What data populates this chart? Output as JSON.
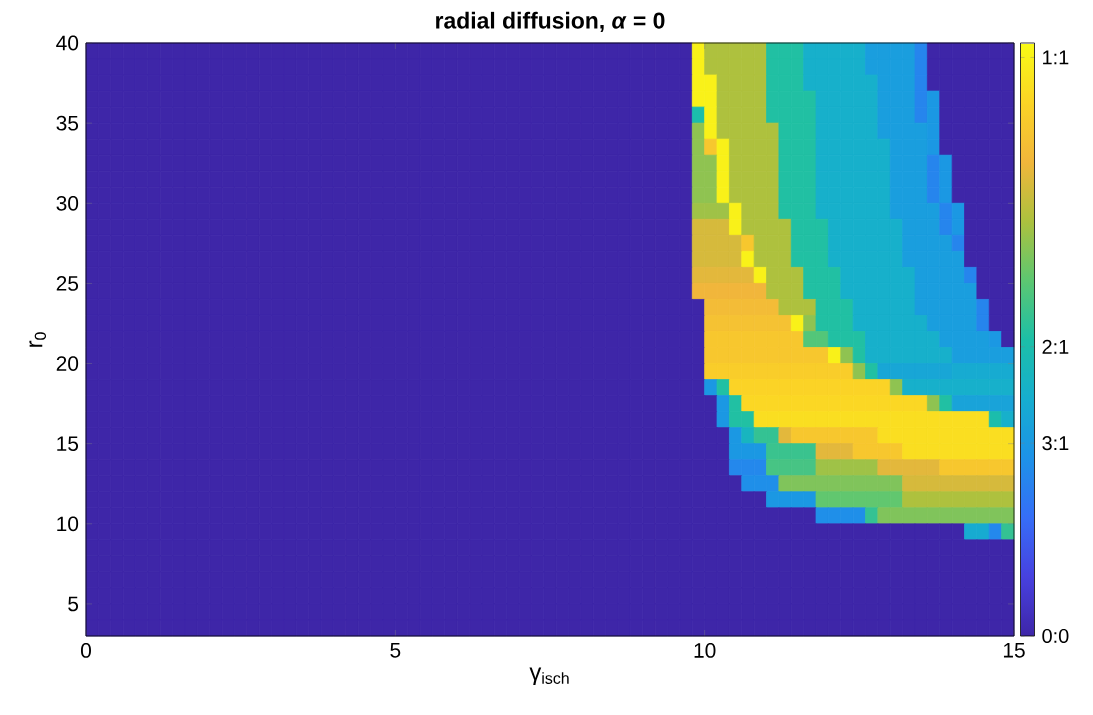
{
  "chart_data": {
    "type": "heatmap",
    "title": "radial diffusion, *α* = 0",
    "xlabel": "γ$_{isch}$",
    "ylabel": "r$_{0}$",
    "xlim": [
      0,
      15
    ],
    "ylim": [
      3,
      40
    ],
    "xticks": [
      0,
      5,
      10,
      15
    ],
    "yticks": [
      5,
      10,
      15,
      20,
      25,
      30,
      35,
      40
    ],
    "clim": [
      0,
      1.025
    ],
    "cticks": [
      {
        "value": 0,
        "label": "0:0"
      },
      {
        "value": 0.3333,
        "label": "3:1"
      },
      {
        "value": 0.5,
        "label": "2:1"
      },
      {
        "value": 1,
        "label": "1:1"
      }
    ],
    "x": [
      0.1,
      0.3,
      0.5,
      0.7,
      0.9,
      1.1,
      1.3,
      1.5,
      1.7,
      1.9,
      2.1,
      2.3,
      2.5,
      2.7,
      2.9,
      3.1,
      3.3,
      3.5,
      3.7,
      3.9,
      4.1,
      4.3,
      4.5,
      4.7,
      4.9,
      5.1,
      5.3,
      5.5,
      5.7,
      5.9,
      6.1,
      6.3,
      6.5,
      6.7,
      6.9,
      7.1,
      7.3,
      7.5,
      7.7,
      7.9,
      8.1,
      8.3,
      8.5,
      8.7,
      8.9,
      9.1,
      9.3,
      9.5,
      9.7,
      9.9,
      10.1,
      10.3,
      10.5,
      10.7,
      10.9,
      11.1,
      11.3,
      11.5,
      11.7,
      11.9,
      12.1,
      12.3,
      12.5,
      12.7,
      12.9,
      13.1,
      13.3,
      13.5,
      13.7,
      13.9,
      14.1,
      14.3,
      14.5,
      14.7,
      14.9
    ],
    "y": [
      39.5,
      38.5,
      37.5,
      36.5,
      35.5,
      34.5,
      33.5,
      32.5,
      31.5,
      30.5,
      29.5,
      28.5,
      27.5,
      26.5,
      25.5,
      24.5,
      23.5,
      22.5,
      21.5,
      20.5,
      19.5,
      18.5,
      17.5,
      16.5,
      15.5,
      14.5,
      13.5,
      12.5,
      11.5,
      10.5,
      9.5,
      8.5,
      7.5,
      6.5,
      5.5,
      4.5,
      3.5
    ],
    "cells": [
      [
        0,
        0,
        0,
        0,
        0,
        0,
        0,
        0,
        0,
        0,
        0,
        0,
        0,
        0,
        0,
        0,
        0,
        0,
        0,
        0,
        0,
        0,
        0,
        0,
        0,
        0,
        0,
        0,
        0,
        0,
        0,
        0,
        0,
        0,
        0,
        0,
        0,
        0,
        0,
        0,
        0,
        0,
        0,
        0,
        0,
        0,
        0,
        0,
        0,
        1,
        0.72,
        0.72,
        0.72,
        0.72,
        0.72,
        0.52,
        0.52,
        0.52,
        0.42,
        0.42,
        0.42,
        0.42,
        0.42,
        0.35,
        0.35,
        0.35,
        0.35,
        0.27,
        0,
        0,
        0,
        0,
        0,
        0,
        0
      ],
      [
        0,
        0,
        0,
        0,
        0,
        0,
        0,
        0,
        0,
        0,
        0,
        0,
        0,
        0,
        0,
        0,
        0,
        0,
        0,
        0,
        0,
        0,
        0,
        0,
        0,
        0,
        0,
        0,
        0,
        0,
        0,
        0,
        0,
        0,
        0,
        0,
        0,
        0,
        0,
        0,
        0,
        0,
        0,
        0,
        0,
        0,
        0,
        0,
        0,
        1,
        0.72,
        0.72,
        0.72,
        0.72,
        0.72,
        0.52,
        0.52,
        0.52,
        0.42,
        0.42,
        0.42,
        0.42,
        0.42,
        0.35,
        0.35,
        0.35,
        0.35,
        0.27,
        0,
        0,
        0,
        0,
        0,
        0,
        0
      ],
      [
        0,
        0,
        0,
        0,
        0,
        0,
        0,
        0,
        0,
        0,
        0,
        0,
        0,
        0,
        0,
        0,
        0,
        0,
        0,
        0,
        0,
        0,
        0,
        0,
        0,
        0,
        0,
        0,
        0,
        0,
        0,
        0,
        0,
        0,
        0,
        0,
        0,
        0,
        0,
        0,
        0,
        0,
        0,
        0,
        0,
        0,
        0,
        0,
        0,
        1,
        1,
        0.72,
        0.72,
        0.72,
        0.72,
        0.52,
        0.52,
        0.52,
        0.42,
        0.42,
        0.42,
        0.42,
        0.42,
        0.42,
        0.35,
        0.35,
        0.35,
        0.27,
        0,
        0,
        0,
        0,
        0,
        0,
        0
      ],
      [
        0,
        0,
        0,
        0,
        0,
        0,
        0,
        0,
        0,
        0,
        0,
        0,
        0,
        0,
        0,
        0,
        0,
        0,
        0,
        0,
        0,
        0,
        0,
        0,
        0,
        0,
        0,
        0,
        0,
        0,
        0,
        0,
        0,
        0,
        0,
        0,
        0,
        0,
        0,
        0,
        0,
        0,
        0,
        0,
        0,
        0,
        0,
        0,
        0,
        1,
        1,
        0.72,
        0.72,
        0.72,
        0.72,
        0.52,
        0.52,
        0.52,
        0.52,
        0.42,
        0.42,
        0.42,
        0.42,
        0.42,
        0.35,
        0.35,
        0.35,
        0.27,
        0.33,
        0,
        0,
        0,
        0,
        0,
        0
      ],
      [
        0,
        0,
        0,
        0,
        0,
        0,
        0,
        0,
        0,
        0,
        0,
        0,
        0,
        0,
        0,
        0,
        0,
        0,
        0,
        0,
        0,
        0,
        0,
        0,
        0,
        0,
        0,
        0,
        0,
        0,
        0,
        0,
        0,
        0,
        0,
        0,
        0,
        0,
        0,
        0,
        0,
        0,
        0,
        0,
        0,
        0,
        0,
        0,
        0,
        0.5,
        1,
        0.72,
        0.72,
        0.72,
        0.72,
        0.52,
        0.52,
        0.52,
        0.52,
        0.42,
        0.42,
        0.42,
        0.42,
        0.42,
        0.35,
        0.35,
        0.35,
        0.27,
        0.33,
        0,
        0,
        0,
        0,
        0,
        0
      ],
      [
        0,
        0,
        0,
        0,
        0,
        0,
        0,
        0,
        0,
        0,
        0,
        0,
        0,
        0,
        0,
        0,
        0,
        0,
        0,
        0,
        0,
        0,
        0,
        0,
        0,
        0,
        0,
        0,
        0,
        0,
        0,
        0,
        0,
        0,
        0,
        0,
        0,
        0,
        0,
        0,
        0,
        0,
        0,
        0,
        0,
        0,
        0,
        0,
        0,
        0.68,
        1,
        0.72,
        0.72,
        0.72,
        0.72,
        0.72,
        0.52,
        0.52,
        0.52,
        0.42,
        0.42,
        0.42,
        0.42,
        0.42,
        0.35,
        0.35,
        0.35,
        0.35,
        0.33,
        0,
        0,
        0,
        0,
        0,
        0
      ],
      [
        0,
        0,
        0,
        0,
        0,
        0,
        0,
        0,
        0,
        0,
        0,
        0,
        0,
        0,
        0,
        0,
        0,
        0,
        0,
        0,
        0,
        0,
        0,
        0,
        0,
        0,
        0,
        0,
        0,
        0,
        0,
        0,
        0,
        0,
        0,
        0,
        0,
        0,
        0,
        0,
        0,
        0,
        0,
        0,
        0,
        0,
        0,
        0,
        0,
        0.68,
        0.88,
        1,
        0.72,
        0.72,
        0.72,
        0.72,
        0.52,
        0.52,
        0.52,
        0.42,
        0.42,
        0.42,
        0.42,
        0.42,
        0.42,
        0.35,
        0.35,
        0.35,
        0.33,
        0,
        0,
        0,
        0,
        0,
        0
      ],
      [
        0,
        0,
        0,
        0,
        0,
        0,
        0,
        0,
        0,
        0,
        0,
        0,
        0,
        0,
        0,
        0,
        0,
        0,
        0,
        0,
        0,
        0,
        0,
        0,
        0,
        0,
        0,
        0,
        0,
        0,
        0,
        0,
        0,
        0,
        0,
        0,
        0,
        0,
        0,
        0,
        0,
        0,
        0,
        0,
        0,
        0,
        0,
        0,
        0,
        0.68,
        0.68,
        1,
        0.72,
        0.72,
        0.72,
        0.72,
        0.52,
        0.52,
        0.52,
        0.42,
        0.42,
        0.42,
        0.42,
        0.42,
        0.42,
        0.35,
        0.35,
        0.35,
        0.27,
        0.33,
        0,
        0,
        0,
        0,
        0
      ],
      [
        0,
        0,
        0,
        0,
        0,
        0,
        0,
        0,
        0,
        0,
        0,
        0,
        0,
        0,
        0,
        0,
        0,
        0,
        0,
        0,
        0,
        0,
        0,
        0,
        0,
        0,
        0,
        0,
        0,
        0,
        0,
        0,
        0,
        0,
        0,
        0,
        0,
        0,
        0,
        0,
        0,
        0,
        0,
        0,
        0,
        0,
        0,
        0,
        0,
        0.68,
        0.68,
        1,
        0.72,
        0.72,
        0.72,
        0.72,
        0.52,
        0.52,
        0.52,
        0.42,
        0.42,
        0.42,
        0.42,
        0.42,
        0.42,
        0.35,
        0.35,
        0.35,
        0.27,
        0.33,
        0,
        0,
        0,
        0,
        0
      ],
      [
        0,
        0,
        0,
        0,
        0,
        0,
        0,
        0,
        0,
        0,
        0,
        0,
        0,
        0,
        0,
        0,
        0,
        0,
        0,
        0,
        0,
        0,
        0,
        0,
        0,
        0,
        0,
        0,
        0,
        0,
        0,
        0,
        0,
        0,
        0,
        0,
        0,
        0,
        0,
        0,
        0,
        0,
        0,
        0,
        0,
        0,
        0,
        0,
        0,
        0.68,
        0.68,
        1,
        0.72,
        0.72,
        0.72,
        0.72,
        0.52,
        0.52,
        0.52,
        0.42,
        0.42,
        0.42,
        0.42,
        0.42,
        0.42,
        0.35,
        0.35,
        0.35,
        0.27,
        0.33,
        0,
        0,
        0,
        0,
        0
      ],
      [
        0,
        0,
        0,
        0,
        0,
        0,
        0,
        0,
        0,
        0,
        0,
        0,
        0,
        0,
        0,
        0,
        0,
        0,
        0,
        0,
        0,
        0,
        0,
        0,
        0,
        0,
        0,
        0,
        0,
        0,
        0,
        0,
        0,
        0,
        0,
        0,
        0,
        0,
        0,
        0,
        0,
        0,
        0,
        0,
        0,
        0,
        0,
        0,
        0,
        0.7,
        0.7,
        0.7,
        1,
        0.72,
        0.72,
        0.72,
        0.52,
        0.52,
        0.52,
        0.42,
        0.42,
        0.42,
        0.42,
        0.42,
        0.42,
        0.35,
        0.35,
        0.35,
        0.35,
        0.27,
        0.33,
        0,
        0,
        0,
        0
      ],
      [
        0,
        0,
        0,
        0,
        0,
        0,
        0,
        0,
        0,
        0,
        0,
        0,
        0,
        0,
        0,
        0,
        0,
        0,
        0,
        0,
        0,
        0,
        0,
        0,
        0,
        0,
        0,
        0,
        0,
        0,
        0,
        0,
        0,
        0,
        0,
        0,
        0,
        0,
        0,
        0,
        0,
        0,
        0,
        0,
        0,
        0,
        0,
        0,
        0,
        0.78,
        0.78,
        0.78,
        1,
        0.72,
        0.72,
        0.72,
        0.72,
        0.52,
        0.52,
        0.52,
        0.42,
        0.42,
        0.42,
        0.42,
        0.42,
        0.42,
        0.35,
        0.35,
        0.35,
        0.27,
        0.33,
        0,
        0,
        0,
        0
      ],
      [
        0,
        0,
        0,
        0,
        0,
        0,
        0,
        0,
        0,
        0,
        0,
        0,
        0,
        0,
        0,
        0,
        0,
        0,
        0,
        0,
        0,
        0,
        0,
        0,
        0,
        0,
        0,
        0,
        0,
        0,
        0,
        0,
        0,
        0,
        0,
        0,
        0,
        0,
        0,
        0,
        0,
        0,
        0,
        0,
        0,
        0,
        0,
        0,
        0,
        0.78,
        0.78,
        0.78,
        0.78,
        0.88,
        0.72,
        0.72,
        0.72,
        0.52,
        0.52,
        0.52,
        0.42,
        0.42,
        0.42,
        0.42,
        0.42,
        0.42,
        0.35,
        0.35,
        0.35,
        0.35,
        0.27,
        0,
        0,
        0,
        0
      ],
      [
        0,
        0,
        0,
        0,
        0,
        0,
        0,
        0,
        0,
        0,
        0,
        0,
        0,
        0,
        0,
        0,
        0,
        0,
        0,
        0,
        0,
        0,
        0,
        0,
        0,
        0,
        0,
        0,
        0,
        0,
        0,
        0,
        0,
        0,
        0,
        0,
        0,
        0,
        0,
        0,
        0,
        0,
        0,
        0,
        0,
        0,
        0,
        0,
        0,
        0.78,
        0.78,
        0.78,
        0.78,
        1,
        0.72,
        0.72,
        0.72,
        0.52,
        0.52,
        0.52,
        0.42,
        0.42,
        0.42,
        0.42,
        0.42,
        0.42,
        0.35,
        0.35,
        0.35,
        0.35,
        0.35,
        0,
        0,
        0,
        0
      ],
      [
        0,
        0,
        0,
        0,
        0,
        0,
        0,
        0,
        0,
        0,
        0,
        0,
        0,
        0,
        0,
        0,
        0,
        0,
        0,
        0,
        0,
        0,
        0,
        0,
        0,
        0,
        0,
        0,
        0,
        0,
        0,
        0,
        0,
        0,
        0,
        0,
        0,
        0,
        0,
        0,
        0,
        0,
        0,
        0,
        0,
        0,
        0,
        0,
        0,
        0.8,
        0.8,
        0.8,
        0.8,
        0.8,
        1,
        0.72,
        0.72,
        0.72,
        0.52,
        0.52,
        0.52,
        0.42,
        0.42,
        0.42,
        0.42,
        0.42,
        0.42,
        0.35,
        0.35,
        0.35,
        0.35,
        0.27,
        0,
        0,
        0
      ],
      [
        0,
        0,
        0,
        0,
        0,
        0,
        0,
        0,
        0,
        0,
        0,
        0,
        0,
        0,
        0,
        0,
        0,
        0,
        0,
        0,
        0,
        0,
        0,
        0,
        0,
        0,
        0,
        0,
        0,
        0,
        0,
        0,
        0,
        0,
        0,
        0,
        0,
        0,
        0,
        0,
        0,
        0,
        0,
        0,
        0,
        0,
        0,
        0,
        0,
        0.82,
        0.82,
        0.82,
        0.82,
        0.82,
        0.82,
        0.72,
        0.72,
        0.72,
        0.52,
        0.52,
        0.52,
        0.42,
        0.42,
        0.42,
        0.42,
        0.42,
        0.42,
        0.35,
        0.35,
        0.35,
        0.35,
        0.35,
        0,
        0,
        0
      ],
      [
        0,
        0,
        0,
        0,
        0,
        0,
        0,
        0,
        0,
        0,
        0,
        0,
        0,
        0,
        0,
        0,
        0,
        0,
        0,
        0,
        0,
        0,
        0,
        0,
        0,
        0,
        0,
        0,
        0,
        0,
        0,
        0,
        0,
        0,
        0,
        0,
        0,
        0,
        0,
        0,
        0,
        0,
        0,
        0,
        0,
        0,
        0,
        0,
        0,
        0,
        0.84,
        0.84,
        0.84,
        0.84,
        0.84,
        0.84,
        0.72,
        0.72,
        0.72,
        0.52,
        0.52,
        0.52,
        0.42,
        0.42,
        0.42,
        0.42,
        0.42,
        0.35,
        0.35,
        0.35,
        0.35,
        0.35,
        0.27,
        0,
        0
      ],
      [
        0,
        0,
        0,
        0,
        0,
        0,
        0,
        0,
        0,
        0,
        0,
        0,
        0,
        0,
        0,
        0,
        0,
        0,
        0,
        0,
        0,
        0,
        0,
        0,
        0,
        0,
        0,
        0,
        0,
        0,
        0,
        0,
        0,
        0,
        0,
        0,
        0,
        0,
        0,
        0,
        0,
        0,
        0,
        0,
        0,
        0,
        0,
        0,
        0,
        0,
        0.86,
        0.86,
        0.86,
        0.86,
        0.86,
        0.86,
        0.86,
        1,
        0.68,
        0.52,
        0.52,
        0.52,
        0.42,
        0.42,
        0.42,
        0.42,
        0.42,
        0.42,
        0.35,
        0.35,
        0.35,
        0.35,
        0.27,
        0,
        0
      ],
      [
        0,
        0,
        0,
        0,
        0,
        0,
        0,
        0,
        0,
        0,
        0,
        0,
        0,
        0,
        0,
        0,
        0,
        0,
        0,
        0,
        0,
        0,
        0,
        0,
        0,
        0,
        0,
        0,
        0,
        0,
        0,
        0,
        0,
        0,
        0,
        0,
        0,
        0,
        0,
        0,
        0,
        0,
        0,
        0,
        0,
        0,
        0,
        0,
        0,
        0,
        0.88,
        0.88,
        0.88,
        0.88,
        0.88,
        0.88,
        0.88,
        0.88,
        0.6,
        0.6,
        0.52,
        0.52,
        0.52,
        0.42,
        0.42,
        0.42,
        0.42,
        0.42,
        0.42,
        0.35,
        0.35,
        0.35,
        0.35,
        0.33,
        0
      ],
      [
        0,
        0,
        0,
        0,
        0,
        0,
        0,
        0,
        0,
        0,
        0,
        0,
        0,
        0,
        0,
        0,
        0,
        0,
        0,
        0,
        0,
        0,
        0,
        0,
        0,
        0,
        0,
        0,
        0,
        0,
        0,
        0,
        0,
        0,
        0,
        0,
        0,
        0,
        0,
        0,
        0,
        0,
        0,
        0,
        0,
        0,
        0,
        0,
        0,
        0,
        0.88,
        0.88,
        0.88,
        0.88,
        0.88,
        0.88,
        0.88,
        0.88,
        0.88,
        0.88,
        1,
        0.68,
        0.52,
        0.42,
        0.42,
        0.42,
        0.42,
        0.42,
        0.42,
        0.42,
        0.35,
        0.35,
        0.35,
        0.35,
        0.35
      ],
      [
        0,
        0,
        0,
        0,
        0,
        0,
        0,
        0,
        0,
        0,
        0,
        0,
        0,
        0,
        0,
        0,
        0,
        0,
        0,
        0,
        0,
        0,
        0,
        0,
        0,
        0,
        0,
        0,
        0,
        0,
        0,
        0,
        0,
        0,
        0,
        0,
        0,
        0,
        0,
        0,
        0,
        0,
        0,
        0,
        0,
        0,
        0,
        0,
        0,
        0,
        0.9,
        0.9,
        0.9,
        0.9,
        0.9,
        0.9,
        0.9,
        0.9,
        0.9,
        0.9,
        0.9,
        0.9,
        0.68,
        0.52,
        0.38,
        0.38,
        0.38,
        0.38,
        0.38,
        0.38,
        0.4,
        0.4,
        0.4,
        0.4,
        0.4
      ],
      [
        0,
        0,
        0,
        0,
        0,
        0,
        0,
        0,
        0,
        0,
        0,
        0,
        0,
        0,
        0,
        0,
        0,
        0,
        0,
        0,
        0,
        0,
        0,
        0,
        0,
        0,
        0,
        0,
        0,
        0,
        0,
        0,
        0,
        0,
        0,
        0,
        0,
        0,
        0,
        0,
        0,
        0,
        0,
        0,
        0,
        0,
        0,
        0,
        0,
        0,
        0.33,
        0.52,
        0.92,
        0.92,
        0.92,
        0.92,
        0.92,
        0.92,
        0.92,
        0.92,
        0.92,
        0.92,
        0.92,
        0.92,
        0.92,
        0.68,
        0.42,
        0.42,
        0.42,
        0.42,
        0.42,
        0.42,
        0.42,
        0.42,
        0.42
      ],
      [
        0,
        0,
        0,
        0,
        0,
        0,
        0,
        0,
        0,
        0,
        0,
        0,
        0,
        0,
        0,
        0,
        0,
        0,
        0,
        0,
        0,
        0,
        0,
        0,
        0,
        0,
        0,
        0,
        0,
        0,
        0,
        0,
        0,
        0,
        0,
        0,
        0,
        0,
        0,
        0,
        0,
        0,
        0,
        0,
        0,
        0,
        0,
        0,
        0,
        0,
        0,
        0.33,
        0.52,
        0.93,
        0.93,
        0.93,
        0.93,
        0.93,
        0.93,
        0.93,
        0.93,
        0.93,
        0.93,
        0.93,
        0.93,
        0.93,
        0.93,
        0.93,
        0.68,
        0.52,
        0.37,
        0.37,
        0.37,
        0.37,
        0.37
      ],
      [
        0,
        0,
        0,
        0,
        0,
        0,
        0,
        0,
        0,
        0,
        0,
        0,
        0,
        0,
        0,
        0,
        0,
        0,
        0,
        0,
        0,
        0,
        0,
        0,
        0,
        0,
        0,
        0,
        0,
        0,
        0,
        0,
        0,
        0,
        0,
        0,
        0,
        0,
        0,
        0,
        0,
        0,
        0,
        0,
        0,
        0,
        0,
        0,
        0,
        0,
        0,
        0.33,
        0.52,
        0.52,
        0.95,
        0.95,
        0.95,
        0.95,
        0.95,
        0.95,
        0.95,
        0.95,
        0.95,
        0.95,
        0.95,
        0.95,
        0.95,
        0.95,
        0.95,
        0.95,
        0.95,
        0.95,
        0.95,
        0.5,
        0.42
      ],
      [
        0,
        0,
        0,
        0,
        0,
        0,
        0,
        0,
        0,
        0,
        0,
        0,
        0,
        0,
        0,
        0,
        0,
        0,
        0,
        0,
        0,
        0,
        0,
        0,
        0,
        0,
        0,
        0,
        0,
        0,
        0,
        0,
        0,
        0,
        0,
        0,
        0,
        0,
        0,
        0,
        0,
        0,
        0,
        0,
        0,
        0,
        0,
        0,
        0,
        0,
        0,
        0,
        0.33,
        0.45,
        0.55,
        0.55,
        0.8,
        0.88,
        0.88,
        0.88,
        0.88,
        0.88,
        0.88,
        0.88,
        0.95,
        0.95,
        0.95,
        0.95,
        0.95,
        0.95,
        0.95,
        0.95,
        0.95,
        0.95,
        0.95
      ],
      [
        0,
        0,
        0,
        0,
        0,
        0,
        0,
        0,
        0,
        0,
        0,
        0,
        0,
        0,
        0,
        0,
        0,
        0,
        0,
        0,
        0,
        0,
        0,
        0,
        0,
        0,
        0,
        0,
        0,
        0,
        0,
        0,
        0,
        0,
        0,
        0,
        0,
        0,
        0,
        0,
        0,
        0,
        0,
        0,
        0,
        0,
        0,
        0,
        0,
        0,
        0,
        0,
        0.33,
        0.33,
        0.33,
        0.56,
        0.56,
        0.56,
        0.56,
        0.8,
        0.8,
        0.8,
        0.88,
        0.88,
        0.88,
        0.88,
        0.95,
        0.95,
        0.95,
        0.95,
        0.95,
        0.95,
        0.95,
        0.95,
        0.95
      ],
      [
        0,
        0,
        0,
        0,
        0,
        0,
        0,
        0,
        0,
        0,
        0,
        0,
        0,
        0,
        0,
        0,
        0,
        0,
        0,
        0,
        0,
        0,
        0,
        0,
        0,
        0,
        0,
        0,
        0,
        0,
        0,
        0,
        0,
        0,
        0,
        0,
        0,
        0,
        0,
        0,
        0,
        0,
        0,
        0,
        0,
        0,
        0,
        0,
        0,
        0,
        0,
        0,
        0.28,
        0.28,
        0.28,
        0.58,
        0.58,
        0.58,
        0.58,
        0.7,
        0.7,
        0.7,
        0.7,
        0.7,
        0.8,
        0.8,
        0.8,
        0.8,
        0.8,
        0.88,
        0.88,
        0.88,
        0.88,
        0.88,
        0.88
      ],
      [
        0,
        0,
        0,
        0,
        0,
        0,
        0,
        0,
        0,
        0,
        0,
        0,
        0,
        0,
        0,
        0,
        0,
        0,
        0,
        0,
        0,
        0,
        0,
        0,
        0,
        0,
        0,
        0,
        0,
        0,
        0,
        0,
        0,
        0,
        0,
        0,
        0,
        0,
        0,
        0,
        0,
        0,
        0,
        0,
        0,
        0,
        0,
        0,
        0,
        0,
        0,
        0,
        0,
        0.3,
        0.3,
        0.3,
        0.66,
        0.66,
        0.66,
        0.66,
        0.66,
        0.66,
        0.66,
        0.66,
        0.66,
        0.66,
        0.78,
        0.78,
        0.78,
        0.78,
        0.78,
        0.78,
        0.78,
        0.78,
        0.78
      ],
      [
        0,
        0,
        0,
        0,
        0,
        0,
        0,
        0,
        0,
        0,
        0,
        0,
        0,
        0,
        0,
        0,
        0,
        0,
        0,
        0,
        0,
        0,
        0,
        0,
        0,
        0,
        0,
        0,
        0,
        0,
        0,
        0,
        0,
        0,
        0,
        0,
        0,
        0,
        0,
        0,
        0,
        0,
        0,
        0,
        0,
        0,
        0,
        0,
        0,
        0,
        0,
        0,
        0,
        0,
        0,
        0.33,
        0.33,
        0.33,
        0.33,
        0.62,
        0.62,
        0.62,
        0.62,
        0.62,
        0.62,
        0.62,
        0.72,
        0.72,
        0.72,
        0.72,
        0.72,
        0.72,
        0.72,
        0.72,
        0.72
      ],
      [
        0,
        0,
        0,
        0,
        0,
        0,
        0,
        0,
        0,
        0,
        0,
        0,
        0,
        0,
        0,
        0,
        0,
        0,
        0,
        0,
        0,
        0,
        0,
        0,
        0,
        0,
        0,
        0,
        0,
        0,
        0,
        0,
        0,
        0,
        0,
        0,
        0,
        0,
        0,
        0,
        0,
        0,
        0,
        0,
        0,
        0,
        0,
        0,
        0,
        0,
        0,
        0,
        0,
        0,
        0,
        0,
        0,
        0,
        0,
        0.3,
        0.3,
        0.3,
        0.3,
        0.55,
        0.66,
        0.66,
        0.66,
        0.66,
        0.66,
        0.66,
        0.66,
        0.66,
        0.66,
        0.66,
        0.66
      ],
      [
        0,
        0,
        0,
        0,
        0,
        0,
        0,
        0,
        0,
        0,
        0,
        0,
        0,
        0,
        0,
        0,
        0,
        0,
        0,
        0,
        0,
        0,
        0,
        0,
        0,
        0,
        0,
        0,
        0,
        0,
        0,
        0,
        0,
        0,
        0,
        0,
        0,
        0,
        0,
        0,
        0,
        0,
        0,
        0,
        0,
        0,
        0,
        0,
        0,
        0,
        0,
        0,
        0,
        0,
        0,
        0,
        0,
        0,
        0,
        0,
        0,
        0,
        0,
        0,
        0,
        0,
        0,
        0,
        0,
        0,
        0,
        0.4,
        0.4,
        0.28,
        0.55
      ],
      [
        0,
        0,
        0,
        0,
        0,
        0,
        0,
        0,
        0,
        0,
        0,
        0,
        0,
        0,
        0,
        0,
        0,
        0,
        0,
        0,
        0,
        0,
        0,
        0,
        0,
        0,
        0,
        0,
        0,
        0,
        0,
        0,
        0,
        0,
        0,
        0,
        0,
        0,
        0,
        0,
        0,
        0,
        0,
        0,
        0,
        0,
        0,
        0,
        0,
        0,
        0,
        0,
        0,
        0,
        0,
        0,
        0,
        0,
        0,
        0,
        0,
        0,
        0,
        0,
        0,
        0,
        0,
        0,
        0,
        0,
        0,
        0,
        0,
        0,
        0
      ],
      [
        0,
        0,
        0,
        0,
        0,
        0,
        0,
        0,
        0,
        0,
        0,
        0,
        0,
        0,
        0,
        0,
        0,
        0,
        0,
        0,
        0,
        0,
        0,
        0,
        0,
        0,
        0,
        0,
        0,
        0,
        0,
        0,
        0,
        0,
        0,
        0,
        0,
        0,
        0,
        0,
        0,
        0,
        0,
        0,
        0,
        0,
        0,
        0,
        0,
        0,
        0,
        0,
        0,
        0,
        0,
        0,
        0,
        0,
        0,
        0,
        0,
        0,
        0,
        0,
        0,
        0,
        0,
        0,
        0,
        0,
        0,
        0,
        0,
        0,
        0
      ],
      [
        0,
        0,
        0,
        0,
        0,
        0,
        0,
        0,
        0,
        0,
        0,
        0,
        0,
        0,
        0,
        0,
        0,
        0,
        0,
        0,
        0,
        0,
        0,
        0,
        0,
        0,
        0,
        0,
        0,
        0,
        0,
        0,
        0,
        0,
        0,
        0,
        0,
        0,
        0,
        0,
        0,
        0,
        0,
        0,
        0,
        0,
        0,
        0,
        0,
        0,
        0,
        0,
        0,
        0,
        0,
        0,
        0,
        0,
        0,
        0,
        0,
        0,
        0,
        0,
        0,
        0,
        0,
        0,
        0,
        0,
        0,
        0,
        0,
        0,
        0
      ],
      [
        0,
        0,
        0,
        0,
        0,
        0,
        0,
        0,
        0,
        0,
        0,
        0,
        0,
        0,
        0,
        0,
        0,
        0,
        0,
        0,
        0,
        0,
        0,
        0,
        0,
        0,
        0,
        0,
        0,
        0,
        0,
        0,
        0,
        0,
        0,
        0,
        0,
        0,
        0,
        0,
        0,
        0,
        0,
        0,
        0,
        0,
        0,
        0,
        0,
        0,
        0,
        0,
        0,
        0,
        0,
        0,
        0,
        0,
        0,
        0,
        0,
        0,
        0,
        0,
        0,
        0,
        0,
        0,
        0,
        0,
        0,
        0,
        0,
        0,
        0
      ],
      [
        0,
        0,
        0,
        0,
        0,
        0,
        0,
        0,
        0,
        0,
        0,
        0,
        0,
        0,
        0,
        0,
        0,
        0,
        0,
        0,
        0,
        0,
        0,
        0,
        0,
        0,
        0,
        0,
        0,
        0,
        0,
        0,
        0,
        0,
        0,
        0,
        0,
        0,
        0,
        0,
        0,
        0,
        0,
        0,
        0,
        0,
        0,
        0,
        0,
        0,
        0,
        0,
        0,
        0,
        0,
        0,
        0,
        0,
        0,
        0,
        0,
        0,
        0,
        0,
        0,
        0,
        0,
        0,
        0,
        0,
        0,
        0,
        0,
        0,
        0
      ],
      [
        0,
        0,
        0,
        0,
        0,
        0,
        0,
        0,
        0,
        0,
        0,
        0,
        0,
        0,
        0,
        0,
        0,
        0,
        0,
        0,
        0,
        0,
        0,
        0,
        0,
        0,
        0,
        0,
        0,
        0,
        0,
        0,
        0,
        0,
        0,
        0,
        0,
        0,
        0,
        0,
        0,
        0,
        0,
        0,
        0,
        0,
        0,
        0,
        0,
        0,
        0,
        0,
        0,
        0,
        0,
        0,
        0,
        0,
        0,
        0,
        0,
        0,
        0,
        0,
        0,
        0,
        0,
        0,
        0,
        0,
        0,
        0,
        0,
        0,
        0
      ]
    ]
  }
}
